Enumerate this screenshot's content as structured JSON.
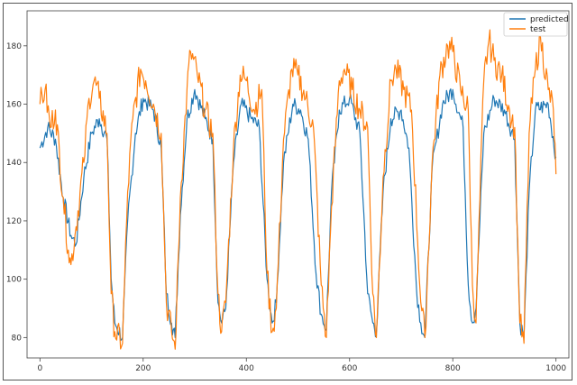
{
  "chart_data": {
    "type": "line",
    "title": "",
    "xlabel": "",
    "ylabel": "",
    "xlim": [
      -25,
      1025
    ],
    "ylim": [
      73,
      192
    ],
    "xticks": [
      0,
      200,
      400,
      600,
      800,
      1000
    ],
    "yticks": [
      80,
      100,
      120,
      140,
      160,
      180
    ],
    "grid": false,
    "legend_position": "top-right",
    "series": [
      {
        "name": "predicted",
        "color": "#1f77b4",
        "x": [
          0,
          15,
          30,
          45,
          60,
          70,
          85,
          100,
          115,
          130,
          138,
          145,
          160,
          170,
          185,
          200,
          220,
          235,
          245,
          255,
          262,
          272,
          285,
          300,
          320,
          335,
          345,
          352,
          360,
          375,
          390,
          410,
          425,
          440,
          450,
          458,
          472,
          490,
          505,
          520,
          535,
          545,
          555,
          565,
          580,
          600,
          620,
          635,
          645,
          652,
          665,
          680,
          700,
          715,
          730,
          738,
          746,
          760,
          780,
          800,
          820,
          830,
          838,
          845,
          860,
          880,
          900,
          920,
          930,
          938,
          948,
          960,
          985,
          1000
        ],
        "y": [
          145,
          152,
          148,
          128,
          115,
          112,
          135,
          150,
          155,
          148,
          100,
          85,
          80,
          120,
          150,
          162,
          158,
          145,
          95,
          85,
          80,
          122,
          155,
          165,
          155,
          148,
          92,
          85,
          90,
          140,
          160,
          155,
          152,
          100,
          85,
          92,
          140,
          160,
          158,
          148,
          102,
          88,
          83,
          130,
          158,
          162,
          150,
          95,
          85,
          82,
          130,
          155,
          158,
          145,
          96,
          85,
          80,
          138,
          160,
          165,
          152,
          98,
          85,
          90,
          150,
          162,
          158,
          148,
          85,
          80,
          130,
          158,
          160,
          142
        ]
      },
      {
        "name": "test",
        "color": "#ff7f0e",
        "x": [
          0,
          10,
          20,
          30,
          45,
          55,
          60,
          70,
          85,
          95,
          105,
          115,
          130,
          138,
          145,
          160,
          170,
          180,
          195,
          205,
          220,
          235,
          245,
          255,
          262,
          272,
          285,
          292,
          305,
          320,
          335,
          345,
          352,
          360,
          375,
          388,
          400,
          415,
          430,
          440,
          450,
          458,
          472,
          488,
          500,
          515,
          530,
          545,
          555,
          565,
          580,
          590,
          605,
          620,
          635,
          645,
          652,
          665,
          680,
          690,
          705,
          720,
          738,
          746,
          760,
          775,
          790,
          800,
          815,
          830,
          838,
          845,
          860,
          870,
          880,
          895,
          910,
          920,
          930,
          938,
          948,
          960,
          970,
          985,
          995,
          1000
        ],
        "y": [
          160,
          165,
          152,
          158,
          128,
          110,
          105,
          118,
          140,
          162,
          168,
          162,
          150,
          95,
          82,
          78,
          130,
          155,
          172,
          168,
          160,
          150,
          92,
          82,
          76,
          128,
          165,
          178,
          170,
          158,
          150,
          95,
          82,
          92,
          145,
          170,
          168,
          158,
          165,
          102,
          82,
          90,
          148,
          172,
          170,
          162,
          152,
          98,
          80,
          125,
          168,
          172,
          165,
          158,
          152,
          95,
          80,
          135,
          168,
          172,
          165,
          158,
          92,
          80,
          140,
          170,
          180,
          178,
          165,
          158,
          98,
          85,
          168,
          182,
          175,
          170,
          158,
          152,
          85,
          78,
          150,
          172,
          183,
          165,
          158,
          136
        ]
      }
    ]
  }
}
